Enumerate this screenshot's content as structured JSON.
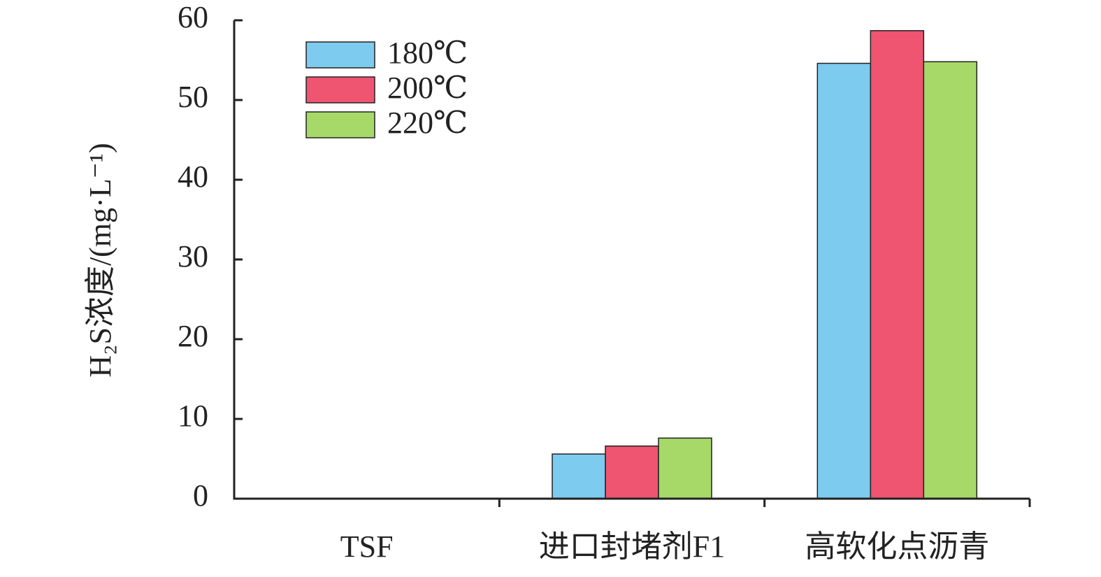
{
  "chart_data": {
    "type": "bar",
    "ylabel": "H₂S浓度/(mg·L⁻¹)",
    "categories": [
      "TSF",
      "进口封堵剂F1",
      "高软化点沥青"
    ],
    "series": [
      {
        "name": "180℃",
        "color": "#7ecbf0",
        "values": [
          0,
          5.6,
          54.6
        ]
      },
      {
        "name": "200℃",
        "color": "#ef5470",
        "values": [
          0,
          6.6,
          58.7
        ]
      },
      {
        "name": "220℃",
        "color": "#a6d968",
        "values": [
          0,
          7.6,
          54.8
        ]
      }
    ],
    "ylim": [
      0,
      60
    ],
    "yticks": [
      0,
      10,
      20,
      30,
      40,
      50,
      60
    ]
  }
}
